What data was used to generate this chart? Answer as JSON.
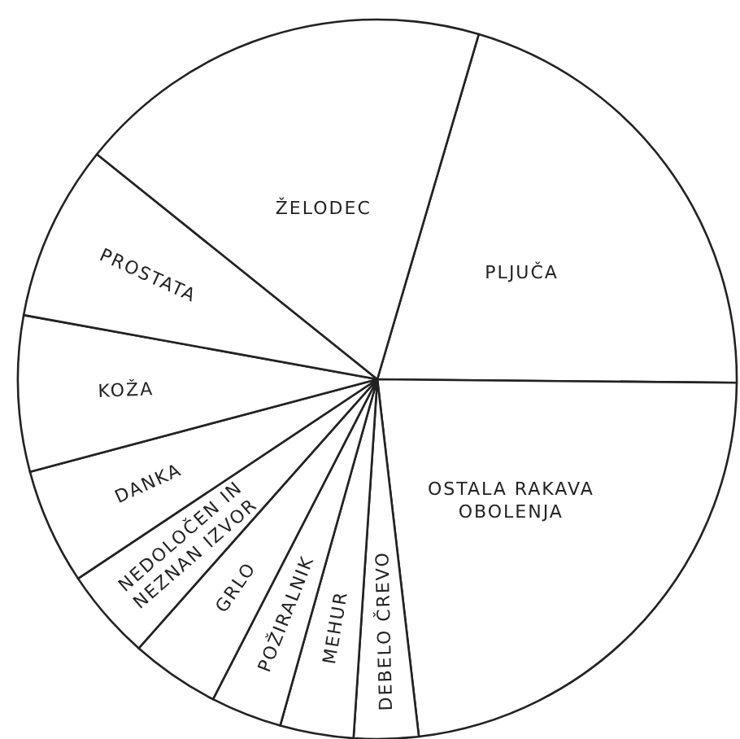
{
  "chart_data": {
    "type": "pie",
    "categories": [
      "PLJUČA",
      "OSTALA RAKAVA\nOBOLENJA",
      "DEBELO ČREVO",
      "MEHUR",
      "POŽIRALNIK",
      "GRLO",
      "NEDOLOČEN IN\nNEZNAN IZVOR",
      "DANKA",
      "KOŽA",
      "PROSTATA",
      "ŽELODEC"
    ],
    "values": [
      20.6,
      23.0,
      2.9,
      3.3,
      3.2,
      4.0,
      4.1,
      5.2,
      7.0,
      7.9,
      18.8
    ],
    "colors": [
      "#ffffff",
      "#ffffff",
      "#ffffff",
      "#ffffff",
      "#ffffff",
      "#ffffff",
      "#ffffff",
      "#ffffff",
      "#ffffff",
      "#ffffff",
      "#ffffff"
    ]
  }
}
